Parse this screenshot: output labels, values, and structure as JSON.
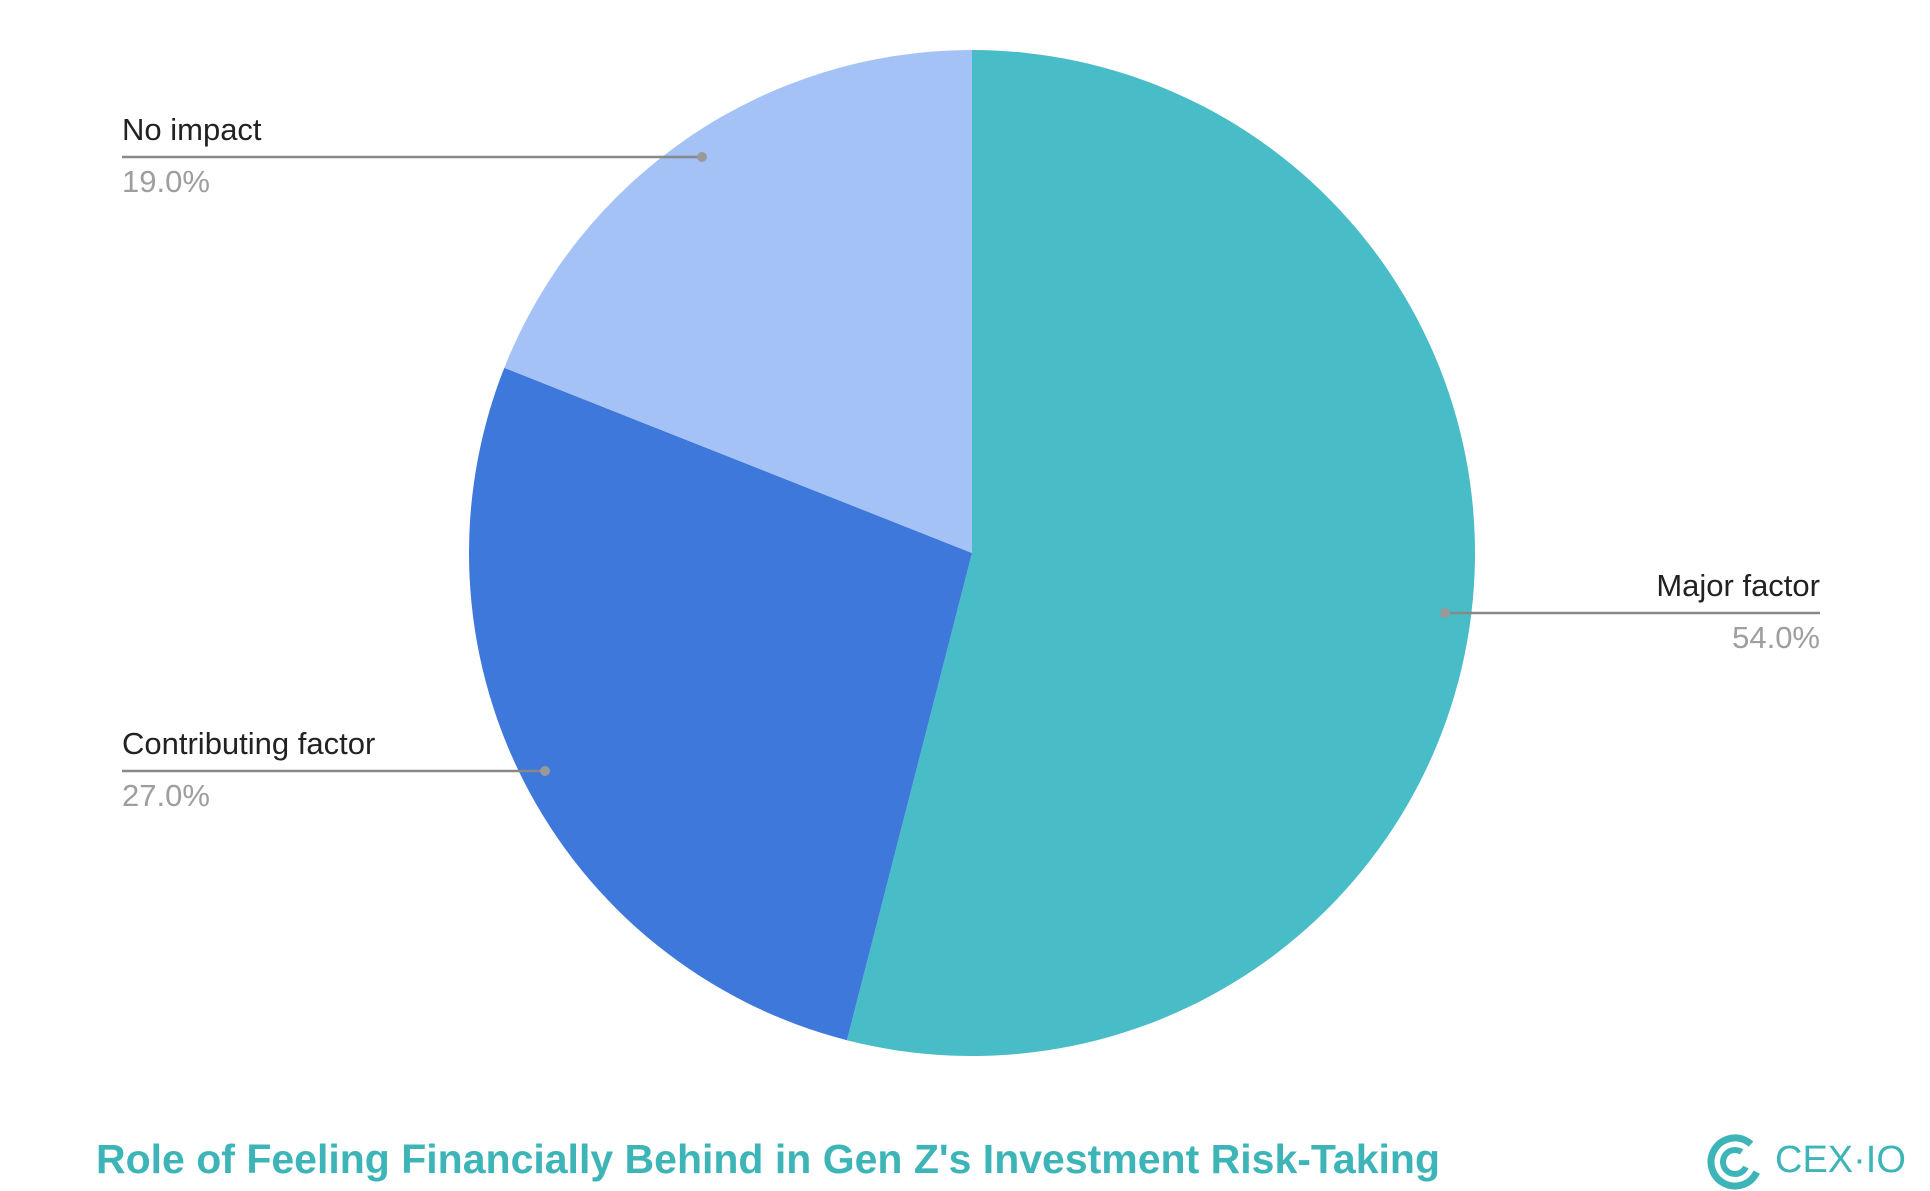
{
  "chart_data": {
    "type": "pie",
    "title": "Role of Feeling Financially Behind in Gen Z's Investment Risk-Taking",
    "categories": [
      "Major factor",
      "Contributing factor",
      "No impact"
    ],
    "values": [
      54,
      27,
      19
    ],
    "value_labels": [
      "54.0%",
      "27.0%",
      "19.0%"
    ],
    "colors": [
      "#48bcc7",
      "#3e78da",
      "#a4c2f6"
    ],
    "logo": "CEX·IO"
  }
}
